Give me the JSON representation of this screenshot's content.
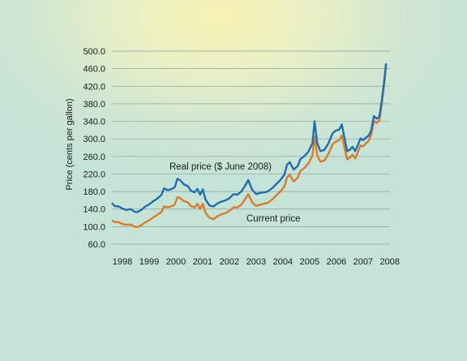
{
  "chart_data": {
    "type": "line",
    "title": "",
    "xlabel": "",
    "ylabel": "Price (cents per gallon)",
    "ylim": [
      60,
      500
    ],
    "yticks": [
      "500.0",
      "460.0",
      "420.0",
      "380.0",
      "340.0",
      "300.0",
      "260.0",
      "220.0",
      "180.0",
      "140.0",
      "100.0",
      "60.0"
    ],
    "xticks": [
      "1998",
      "1999",
      "2000",
      "2001",
      "2002",
      "2003",
      "2004",
      "2005",
      "2006",
      "2007",
      "2008"
    ],
    "xlim": [
      1998,
      2008.25
    ],
    "grid": true,
    "colors": {
      "real": "#1f6db0",
      "current": "#dc7a2a"
    },
    "series": [
      {
        "name": "Real price ($ June 2008)",
        "values": [
          [
            1998.0,
            154
          ],
          [
            1998.1,
            147
          ],
          [
            1998.25,
            146
          ],
          [
            1998.4,
            141
          ],
          [
            1998.55,
            138
          ],
          [
            1998.7,
            140
          ],
          [
            1998.85,
            134
          ],
          [
            1998.95,
            133
          ],
          [
            1999.1,
            138
          ],
          [
            1999.25,
            146
          ],
          [
            1999.4,
            151
          ],
          [
            1999.55,
            158
          ],
          [
            1999.7,
            164
          ],
          [
            1999.85,
            172
          ],
          [
            1999.95,
            187
          ],
          [
            2000.1,
            183
          ],
          [
            2000.25,
            186
          ],
          [
            2000.35,
            190
          ],
          [
            2000.45,
            209
          ],
          [
            2000.55,
            206
          ],
          [
            2000.7,
            196
          ],
          [
            2000.85,
            192
          ],
          [
            2000.95,
            182
          ],
          [
            2001.1,
            178
          ],
          [
            2001.2,
            186
          ],
          [
            2001.3,
            173
          ],
          [
            2001.4,
            185
          ],
          [
            2001.5,
            162
          ],
          [
            2001.65,
            148
          ],
          [
            2001.8,
            146
          ],
          [
            2001.95,
            153
          ],
          [
            2002.1,
            157
          ],
          [
            2002.25,
            160
          ],
          [
            2002.4,
            165
          ],
          [
            2002.55,
            174
          ],
          [
            2002.7,
            173
          ],
          [
            2002.85,
            181
          ],
          [
            2003.0,
            195
          ],
          [
            2003.1,
            206
          ],
          [
            2003.25,
            184
          ],
          [
            2003.4,
            174
          ],
          [
            2003.55,
            177
          ],
          [
            2003.7,
            178
          ],
          [
            2003.85,
            181
          ],
          [
            2004.0,
            188
          ],
          [
            2004.15,
            197
          ],
          [
            2004.3,
            206
          ],
          [
            2004.45,
            218
          ],
          [
            2004.55,
            241
          ],
          [
            2004.65,
            247
          ],
          [
            2004.8,
            230
          ],
          [
            2004.95,
            238
          ],
          [
            2005.05,
            254
          ],
          [
            2005.2,
            261
          ],
          [
            2005.35,
            271
          ],
          [
            2005.5,
            290
          ],
          [
            2005.58,
            340
          ],
          [
            2005.68,
            290
          ],
          [
            2005.8,
            272
          ],
          [
            2005.95,
            275
          ],
          [
            2006.1,
            290
          ],
          [
            2006.25,
            312
          ],
          [
            2006.35,
            318
          ],
          [
            2006.5,
            321
          ],
          [
            2006.6,
            333
          ],
          [
            2006.7,
            302
          ],
          [
            2006.8,
            272
          ],
          [
            2006.9,
            275
          ],
          [
            2007.0,
            282
          ],
          [
            2007.1,
            272
          ],
          [
            2007.2,
            286
          ],
          [
            2007.3,
            301
          ],
          [
            2007.4,
            297
          ],
          [
            2007.5,
            303
          ],
          [
            2007.6,
            307
          ],
          [
            2007.7,
            320
          ],
          [
            2007.8,
            352
          ],
          [
            2007.9,
            346
          ],
          [
            2008.0,
            350
          ],
          [
            2008.1,
            390
          ],
          [
            2008.2,
            440
          ],
          [
            2008.25,
            472
          ]
        ]
      },
      {
        "name": "Current price",
        "values": [
          [
            1998.0,
            114
          ],
          [
            1998.1,
            111
          ],
          [
            1998.25,
            110
          ],
          [
            1998.4,
            106
          ],
          [
            1998.55,
            104
          ],
          [
            1998.7,
            105
          ],
          [
            1998.85,
            100
          ],
          [
            1998.95,
            99
          ],
          [
            1999.1,
            103
          ],
          [
            1999.25,
            110
          ],
          [
            1999.4,
            115
          ],
          [
            1999.55,
            121
          ],
          [
            1999.7,
            127
          ],
          [
            1999.85,
            133
          ],
          [
            1999.95,
            146
          ],
          [
            2000.1,
            144
          ],
          [
            2000.25,
            147
          ],
          [
            2000.35,
            150
          ],
          [
            2000.45,
            167
          ],
          [
            2000.55,
            165
          ],
          [
            2000.7,
            158
          ],
          [
            2000.85,
            155
          ],
          [
            2000.95,
            147
          ],
          [
            2001.1,
            144
          ],
          [
            2001.2,
            152
          ],
          [
            2001.3,
            140
          ],
          [
            2001.4,
            152
          ],
          [
            2001.5,
            132
          ],
          [
            2001.65,
            120
          ],
          [
            2001.8,
            117
          ],
          [
            2001.95,
            124
          ],
          [
            2002.1,
            128
          ],
          [
            2002.25,
            131
          ],
          [
            2002.4,
            136
          ],
          [
            2002.55,
            144
          ],
          [
            2002.7,
            144
          ],
          [
            2002.85,
            151
          ],
          [
            2003.0,
            164
          ],
          [
            2003.1,
            174
          ],
          [
            2003.25,
            155
          ],
          [
            2003.4,
            147
          ],
          [
            2003.55,
            150
          ],
          [
            2003.7,
            152
          ],
          [
            2003.85,
            155
          ],
          [
            2004.0,
            162
          ],
          [
            2004.15,
            171
          ],
          [
            2004.3,
            180
          ],
          [
            2004.45,
            191
          ],
          [
            2004.55,
            212
          ],
          [
            2004.65,
            218
          ],
          [
            2004.8,
            203
          ],
          [
            2004.95,
            212
          ],
          [
            2005.05,
            227
          ],
          [
            2005.2,
            234
          ],
          [
            2005.35,
            244
          ],
          [
            2005.5,
            262
          ],
          [
            2005.58,
            305
          ],
          [
            2005.68,
            262
          ],
          [
            2005.8,
            248
          ],
          [
            2005.95,
            251
          ],
          [
            2006.1,
            266
          ],
          [
            2006.25,
            287
          ],
          [
            2006.35,
            293
          ],
          [
            2006.5,
            297
          ],
          [
            2006.6,
            308
          ],
          [
            2006.7,
            280
          ],
          [
            2006.8,
            253
          ],
          [
            2006.9,
            257
          ],
          [
            2007.0,
            264
          ],
          [
            2007.1,
            255
          ],
          [
            2007.2,
            270
          ],
          [
            2007.3,
            285
          ],
          [
            2007.4,
            283
          ],
          [
            2007.5,
            290
          ],
          [
            2007.6,
            295
          ],
          [
            2007.7,
            310
          ],
          [
            2007.8,
            341
          ],
          [
            2007.9,
            336
          ],
          [
            2008.0,
            342
          ],
          [
            2008.1,
            382
          ],
          [
            2008.2,
            434
          ],
          [
            2008.25,
            468
          ]
        ]
      }
    ],
    "annotations": [
      {
        "text": "Real price ($ June 2008)",
        "series": 0
      },
      {
        "text": "Current price",
        "series": 1
      }
    ]
  }
}
